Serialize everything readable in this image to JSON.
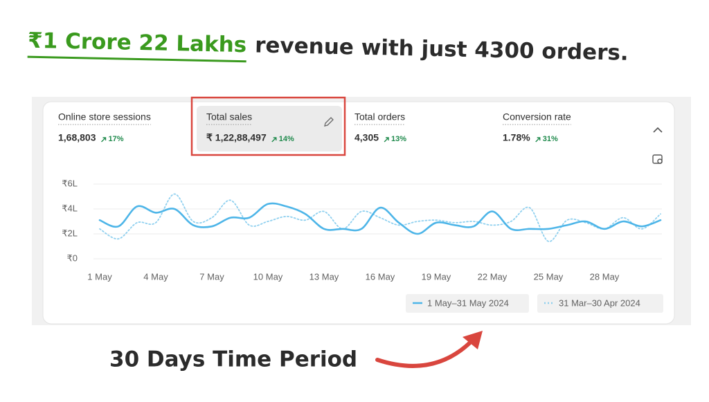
{
  "headline": {
    "highlight": "₹1 Crore 22 Lakhs",
    "text": "revenue with just 4300 orders."
  },
  "metrics": [
    {
      "label": "Online store sessions",
      "value": "1,68,803",
      "change": "17%"
    },
    {
      "label": "Total sales",
      "value": "₹ 1,22,88,497",
      "change": "14%"
    },
    {
      "label": "Total orders",
      "value": "4,305",
      "change": "13%"
    },
    {
      "label": "Conversion rate",
      "value": "1.78%",
      "change": "31%"
    }
  ],
  "chart_data": {
    "type": "line",
    "categories": [
      "1 May",
      null,
      null,
      "4 May",
      null,
      null,
      "7 May",
      null,
      null,
      "10 May",
      null,
      null,
      "13 May",
      null,
      null,
      "16 May",
      null,
      null,
      "19 May",
      null,
      null,
      "22 May",
      null,
      null,
      "25 May",
      null,
      null,
      "28 May",
      null,
      null,
      null
    ],
    "ylim": [
      0,
      600000
    ],
    "yticks": [
      {
        "value": 0,
        "label": "₹0"
      },
      {
        "value": 200000,
        "label": "₹2L"
      },
      {
        "value": 400000,
        "label": "₹4L"
      },
      {
        "value": 600000,
        "label": "₹6L"
      }
    ],
    "grid": true,
    "series": [
      {
        "name": "1 May–31 May 2024",
        "color": "#4db5e8",
        "dash": "solid",
        "values": [
          310000,
          260000,
          420000,
          370000,
          400000,
          270000,
          260000,
          330000,
          330000,
          440000,
          420000,
          360000,
          240000,
          240000,
          240000,
          410000,
          290000,
          200000,
          290000,
          270000,
          260000,
          380000,
          240000,
          240000,
          240000,
          270000,
          300000,
          240000,
          300000,
          260000,
          310000
        ]
      },
      {
        "name": "31 Mar–30 Apr 2024",
        "color": "#8fd0ef",
        "dash": "dotted",
        "values": [
          240000,
          160000,
          290000,
          290000,
          520000,
          300000,
          330000,
          470000,
          270000,
          300000,
          340000,
          310000,
          380000,
          240000,
          380000,
          330000,
          270000,
          300000,
          310000,
          290000,
          300000,
          270000,
          300000,
          410000,
          140000,
          310000,
          290000,
          240000,
          330000,
          240000,
          360000
        ]
      }
    ]
  },
  "footer": {
    "caption": "30 Days Time Period"
  }
}
